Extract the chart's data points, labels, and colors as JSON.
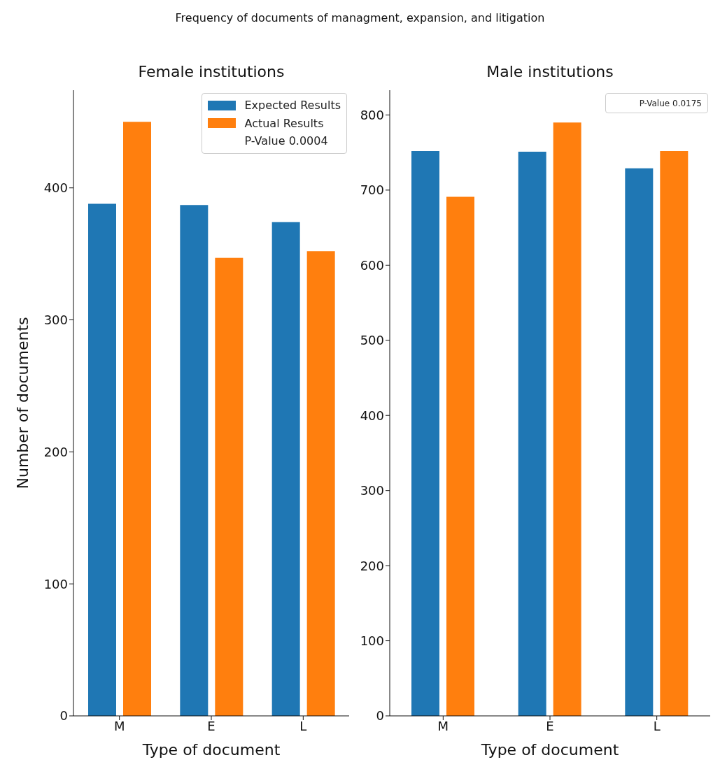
{
  "chart_data": [
    {
      "type": "bar",
      "title": "Female institutions",
      "xlabel": "Type of document",
      "ylabel": "Number of documents",
      "categories": [
        "M",
        "E",
        "L"
      ],
      "series": [
        {
          "name": "Expected Results",
          "color": "#1f77b4",
          "values": [
            388,
            387,
            374
          ]
        },
        {
          "name": "Actual Results",
          "color": "#ff7f0e",
          "values": [
            450,
            347,
            352
          ]
        }
      ],
      "ylim": [
        0,
        474
      ],
      "yticks": [
        0,
        100,
        200,
        300,
        400
      ],
      "legend": "top right",
      "annotations": [
        "Frequency of documents of managment, expansion, and litigation",
        "P-Value 0.0004"
      ]
    },
    {
      "type": "bar",
      "title": "Male institutions",
      "xlabel": "Type of document",
      "categories": [
        "M",
        "E",
        "L"
      ],
      "series": [
        {
          "color": "#1f77b4",
          "values": [
            752,
            751,
            729
          ]
        },
        {
          "color": "#ff7f0e",
          "values": [
            691,
            790,
            752
          ]
        }
      ],
      "ylim": [
        0,
        833
      ],
      "yticks": [
        0,
        100,
        200,
        300,
        400,
        500,
        600,
        700,
        800
      ],
      "legend": "top right",
      "annotations": [
        "P-Value 0.0175"
      ]
    }
  ]
}
